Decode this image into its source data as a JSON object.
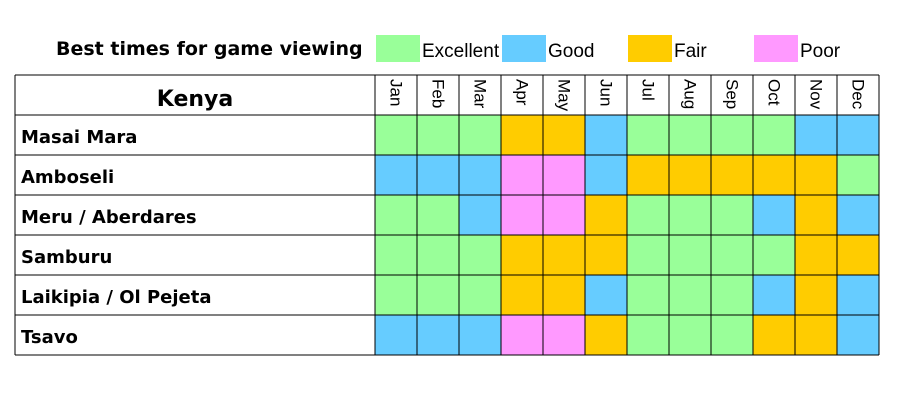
{
  "chart_data": {
    "type": "heatmap",
    "title": "Best times for game viewing",
    "corner_label": "Kenya",
    "legend": [
      {
        "key": "excellent",
        "label": "Excellent",
        "color": "#99ff99"
      },
      {
        "key": "good",
        "label": "Good",
        "color": "#66ccff"
      },
      {
        "key": "fair",
        "label": "Fair",
        "color": "#ffcc00"
      },
      {
        "key": "poor",
        "label": "Poor",
        "color": "#ff99ff"
      }
    ],
    "months": [
      "Jan",
      "Feb",
      "Mar",
      "Apr",
      "May",
      "Jun",
      "Jul",
      "Aug",
      "Sep",
      "Oct",
      "Nov",
      "Dec"
    ],
    "rows": [
      {
        "label": "Masai Mara",
        "values": [
          "excellent",
          "excellent",
          "excellent",
          "fair",
          "fair",
          "good",
          "excellent",
          "excellent",
          "excellent",
          "excellent",
          "good",
          "good"
        ]
      },
      {
        "label": "Amboseli",
        "values": [
          "good",
          "good",
          "good",
          "poor",
          "poor",
          "good",
          "fair",
          "fair",
          "fair",
          "fair",
          "fair",
          "excellent"
        ]
      },
      {
        "label": "Meru / Aberdares",
        "values": [
          "excellent",
          "excellent",
          "good",
          "poor",
          "poor",
          "fair",
          "excellent",
          "excellent",
          "excellent",
          "good",
          "fair",
          "good"
        ]
      },
      {
        "label": "Samburu",
        "values": [
          "excellent",
          "excellent",
          "excellent",
          "fair",
          "fair",
          "fair",
          "excellent",
          "excellent",
          "excellent",
          "excellent",
          "fair",
          "fair"
        ]
      },
      {
        "label": "Laikipia / Ol Pejeta",
        "values": [
          "excellent",
          "excellent",
          "excellent",
          "fair",
          "fair",
          "good",
          "excellent",
          "excellent",
          "excellent",
          "good",
          "fair",
          "good"
        ]
      },
      {
        "label": "Tsavo",
        "values": [
          "good",
          "good",
          "good",
          "poor",
          "poor",
          "fair",
          "excellent",
          "excellent",
          "excellent",
          "fair",
          "fair",
          "good"
        ]
      }
    ]
  }
}
